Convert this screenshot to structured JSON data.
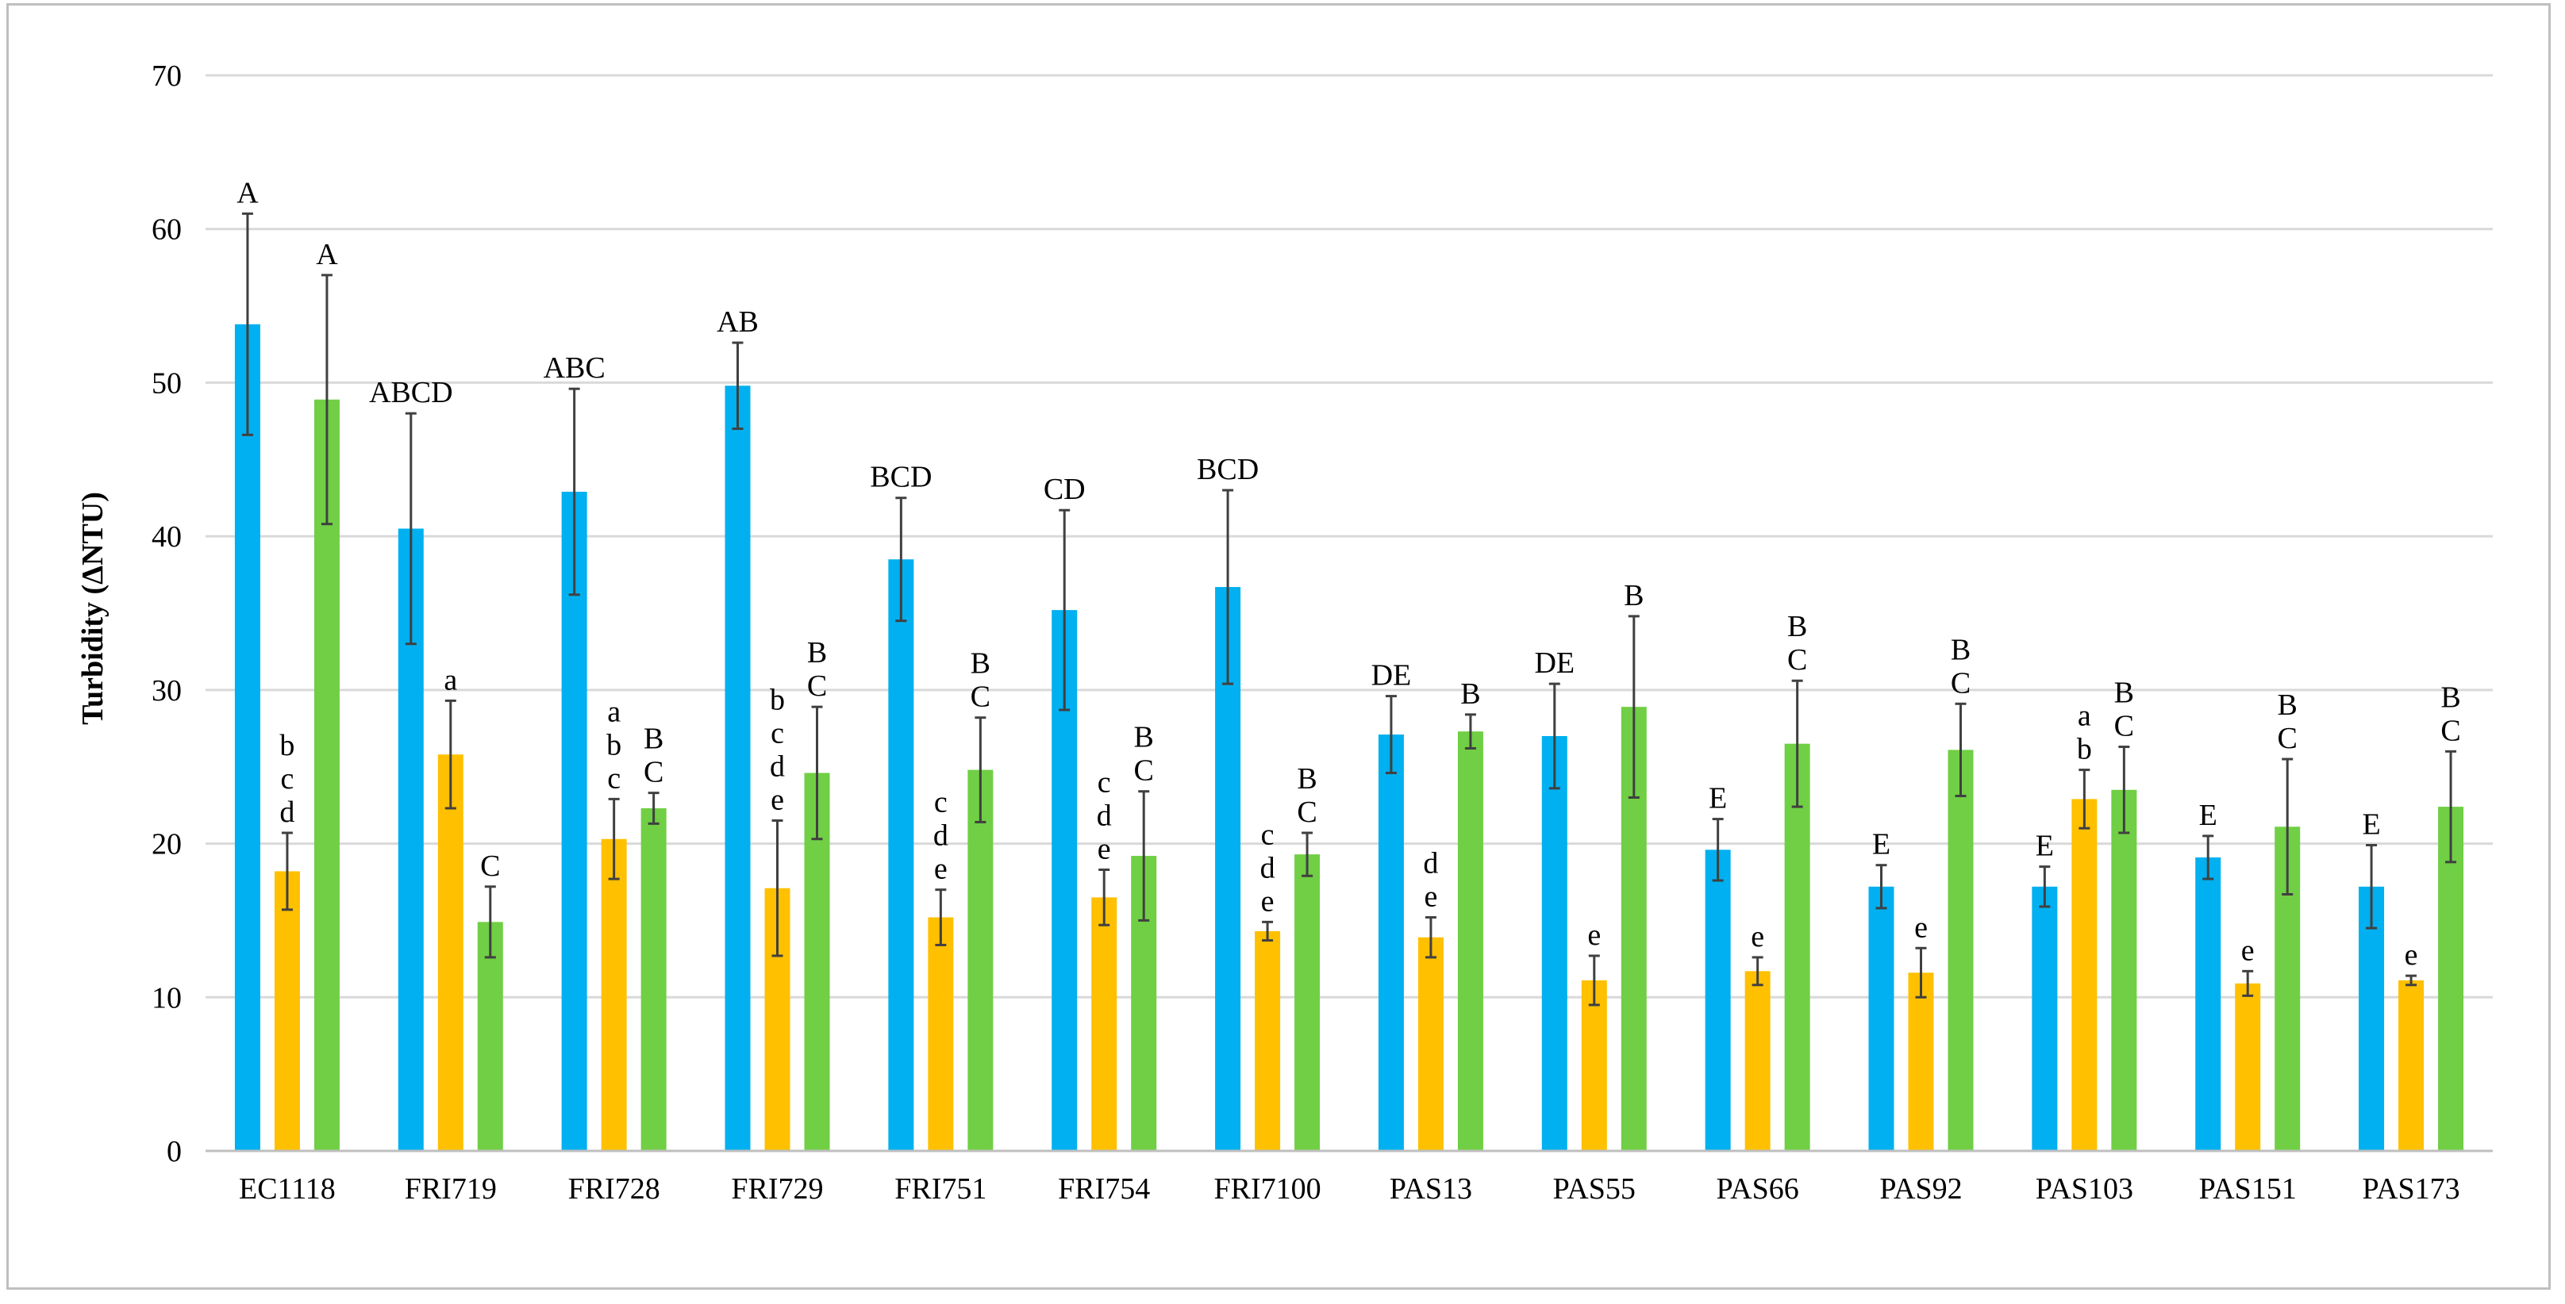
{
  "chart_data": {
    "type": "bar",
    "title": "",
    "xlabel": "",
    "ylabel": "Turbidity (ΔNTU)",
    "ylim": [
      0,
      70
    ],
    "yticks": [
      "0",
      "10",
      "20",
      "30",
      "40",
      "50",
      "60",
      "70"
    ],
    "grid": true,
    "legend": "none",
    "categories": [
      "EC1118",
      "FRI719",
      "FRI728",
      "FRI729",
      "FRI751",
      "FRI754",
      "FRI7100",
      "PAS13",
      "PAS55",
      "PAS66",
      "PAS92",
      "PAS103",
      "PAS151",
      "PAS173"
    ],
    "series": [
      {
        "name": "series-1",
        "color": "#00b0f0",
        "values": [
          53.8,
          40.5,
          42.9,
          49.8,
          38.5,
          35.2,
          36.7,
          27.1,
          27.0,
          19.6,
          17.2,
          17.2,
          19.1,
          17.2
        ],
        "errors": [
          7.2,
          7.5,
          6.7,
          2.8,
          4.0,
          6.5,
          6.3,
          2.5,
          3.4,
          2.0,
          1.4,
          1.3,
          1.4,
          2.7
        ],
        "letters": [
          [
            "A"
          ],
          [
            "ABCD"
          ],
          [
            "ABC"
          ],
          [
            "AB"
          ],
          [
            "BCD"
          ],
          [
            "CD"
          ],
          [
            "BCD"
          ],
          [
            "DE"
          ],
          [
            "DE"
          ],
          [
            "E"
          ],
          [
            "E"
          ],
          [
            "E"
          ],
          [
            "E"
          ],
          [
            "E"
          ]
        ]
      },
      {
        "name": "series-2",
        "color": "#ffc000",
        "values": [
          18.2,
          25.8,
          20.3,
          17.1,
          15.2,
          16.5,
          14.3,
          13.9,
          11.1,
          11.7,
          11.6,
          22.9,
          10.9,
          11.1
        ],
        "errors": [
          2.5,
          3.5,
          2.6,
          4.4,
          1.8,
          1.8,
          0.6,
          1.3,
          1.6,
          0.9,
          1.6,
          1.9,
          0.8,
          0.3
        ],
        "letters": [
          [
            "b",
            "c",
            "d"
          ],
          [
            "a"
          ],
          [
            "a",
            "b",
            "c"
          ],
          [
            "b",
            "c",
            "d",
            "e"
          ],
          [
            "c",
            "d",
            "e"
          ],
          [
            "c",
            "d",
            "e"
          ],
          [
            "c",
            "d",
            "e"
          ],
          [
            "d",
            "e"
          ],
          [
            "e"
          ],
          [
            "e"
          ],
          [
            "e"
          ],
          [
            "a",
            "b"
          ],
          [
            "e"
          ],
          [
            "e"
          ]
        ]
      },
      {
        "name": "series-3",
        "color": "#70cf44",
        "values": [
          48.9,
          14.9,
          22.3,
          24.6,
          24.8,
          19.2,
          19.3,
          27.3,
          28.9,
          26.5,
          26.1,
          23.5,
          21.1,
          22.4
        ],
        "errors": [
          8.1,
          2.3,
          1.0,
          4.3,
          3.4,
          4.2,
          1.4,
          1.1,
          5.9,
          4.1,
          3.0,
          2.8,
          4.4,
          3.6
        ],
        "letters": [
          [
            "A"
          ],
          [
            "C"
          ],
          [
            "B",
            "C"
          ],
          [
            "B",
            "C"
          ],
          [
            "B",
            "C"
          ],
          [
            "B",
            "C"
          ],
          [
            "B",
            "C"
          ],
          [
            "B"
          ],
          [
            "B"
          ],
          [
            "B",
            "C"
          ],
          [
            "B",
            "C"
          ],
          [
            "B",
            "C"
          ],
          [
            "B",
            "C"
          ],
          [
            "B",
            "C"
          ]
        ]
      }
    ]
  }
}
